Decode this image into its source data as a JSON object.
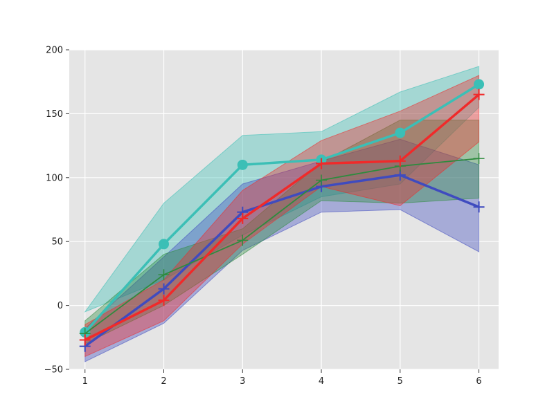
{
  "chart_data": {
    "type": "line",
    "title": "",
    "xlabel": "",
    "ylabel": "",
    "x": [
      1,
      2,
      3,
      4,
      5,
      6
    ],
    "xlim": [
      0.8,
      6.25
    ],
    "ylim": [
      -50,
      200
    ],
    "xticks": [
      1,
      2,
      3,
      4,
      5,
      6
    ],
    "yticks": [
      -50,
      0,
      50,
      100,
      150,
      200
    ],
    "grid": true,
    "legend": "none",
    "colors": {
      "plot_background": "#e5e5e5",
      "grid": "#ffffff"
    },
    "series": [
      {
        "color": "#3bbfb6",
        "marker": "circle",
        "line_width": 3.5,
        "values": [
          -21,
          48,
          110,
          114,
          135,
          173
        ],
        "band_low": [
          -5,
          20,
          55,
          85,
          95,
          155
        ],
        "band_high": [
          -5,
          80,
          133,
          136,
          167,
          187
        ]
      },
      {
        "color": "#3f4bbf",
        "marker": "plus",
        "line_width": 3.5,
        "values": [
          -32,
          13,
          73,
          93,
          102,
          77
        ],
        "band_low": [
          -44,
          -14,
          43,
          73,
          75,
          42
        ],
        "band_high": [
          -18,
          38,
          95,
          113,
          130,
          110
        ]
      },
      {
        "color": "#2e8b3e",
        "marker": "plus",
        "line_width": 1.8,
        "values": [
          -22,
          24,
          51,
          98,
          109,
          115
        ],
        "band_low": [
          -30,
          0,
          40,
          82,
          80,
          84
        ],
        "band_high": [
          -12,
          40,
          60,
          112,
          145,
          145
        ]
      },
      {
        "color": "#f02a2a",
        "marker": "plus",
        "line_width": 3.5,
        "values": [
          -27,
          4,
          68,
          111,
          113,
          165
        ],
        "band_low": [
          -40,
          -12,
          48,
          93,
          78,
          128
        ],
        "band_high": [
          -15,
          20,
          90,
          129,
          152,
          180
        ]
      }
    ]
  }
}
